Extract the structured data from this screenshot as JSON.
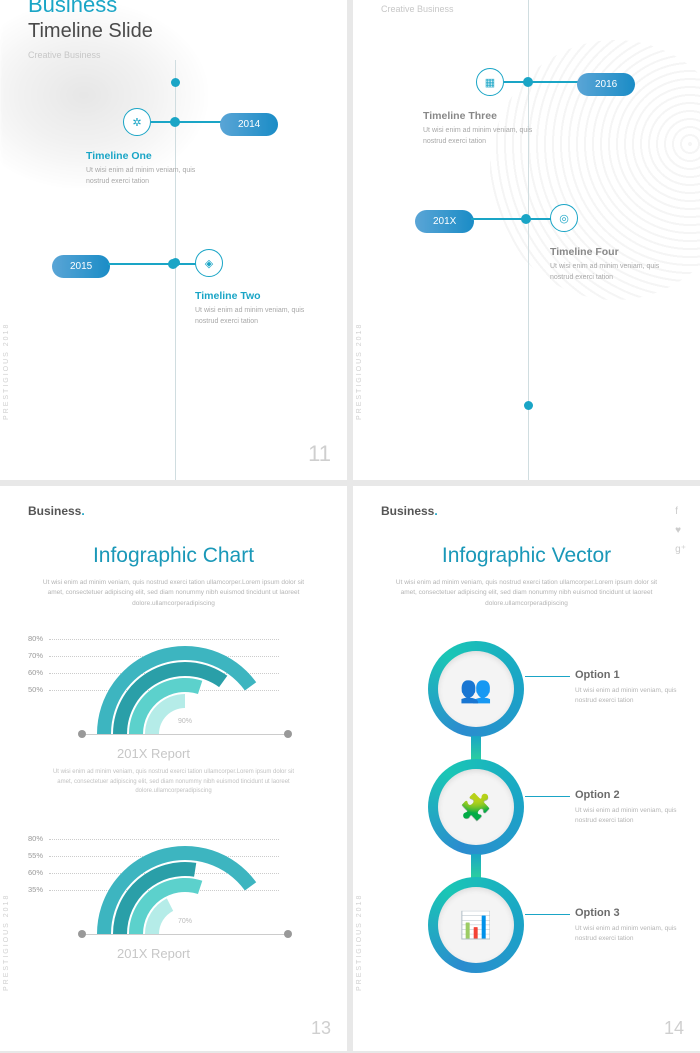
{
  "colors": {
    "accent": "#1aa5c6",
    "accent2": "#2bcf9f",
    "pill_gradient_from": "#5aa5d6",
    "pill_gradient_to": "#1a8cc6",
    "text_muted": "#b5b5b5",
    "text_heading": "#4a4a4a",
    "text_light": "#c7c7c7",
    "page_num": "#cfcfcf",
    "gauge_colors": [
      "#3db5c0",
      "#2a9fa8",
      "#5cd1cc",
      "#b5ece8"
    ]
  },
  "lorem_short": "Ut wisi enim ad minim veniam, quis nostrud exerci tation",
  "lorem_long": "Ut wisi enim ad minim veniam, quis nostrud exerci tation ullamcorper.Lorem ipsum dolor sit amet, consectetuer adipiscing elit, sed diam nonummy nibh euismod tincidunt ut laoreet dolore.ullamcorperadipiscing",
  "slide1": {
    "title_small": "Business",
    "title": "Timeline Slide",
    "subtitle": "Creative Business",
    "page": "11",
    "side": "PRESTIGIOUS 2018",
    "item1": {
      "year": "2014",
      "heading": "Timeline One"
    },
    "item2": {
      "year": "2015",
      "heading": "Timeline Two"
    }
  },
  "slide2": {
    "subtitle": "Creative Business",
    "side": "PRESTIGIOUS 2018",
    "item3": {
      "year": "2016",
      "heading": "Timeline Three"
    },
    "item4": {
      "year": "201X",
      "heading": "Timeline Four"
    }
  },
  "slide3": {
    "brand": "Business",
    "title": "Infographic Chart",
    "page": "13",
    "side": "PRESTIGIOUS 2018",
    "gauge1": {
      "labels": [
        "80%",
        "70%",
        "60%",
        "50%"
      ],
      "inner": "90%",
      "caption": "201X Report",
      "arcs": [
        {
          "value": 80,
          "color": "#3db5c0"
        },
        {
          "value": 70,
          "color": "#2a9fa8"
        },
        {
          "value": 60,
          "color": "#5cd1cc"
        },
        {
          "value": 50,
          "color": "#b5ece8"
        }
      ]
    },
    "gauge2": {
      "labels": [
        "80%",
        "55%",
        "60%",
        "35%"
      ],
      "inner": "70%",
      "caption": "201X Report",
      "arcs": [
        {
          "value": 80,
          "color": "#3db5c0"
        },
        {
          "value": 55,
          "color": "#2a9fa8"
        },
        {
          "value": 60,
          "color": "#5cd1cc"
        },
        {
          "value": 35,
          "color": "#b5ece8"
        }
      ]
    }
  },
  "slide4": {
    "brand": "Business",
    "title": "Infographic Vector",
    "page": "14",
    "side": "PRESTIGIOUS 2018",
    "options": [
      {
        "label": "Option 1",
        "icon": "👥"
      },
      {
        "label": "Option 2",
        "icon": "🧩"
      },
      {
        "label": "Option 3",
        "icon": "📊"
      }
    ]
  }
}
